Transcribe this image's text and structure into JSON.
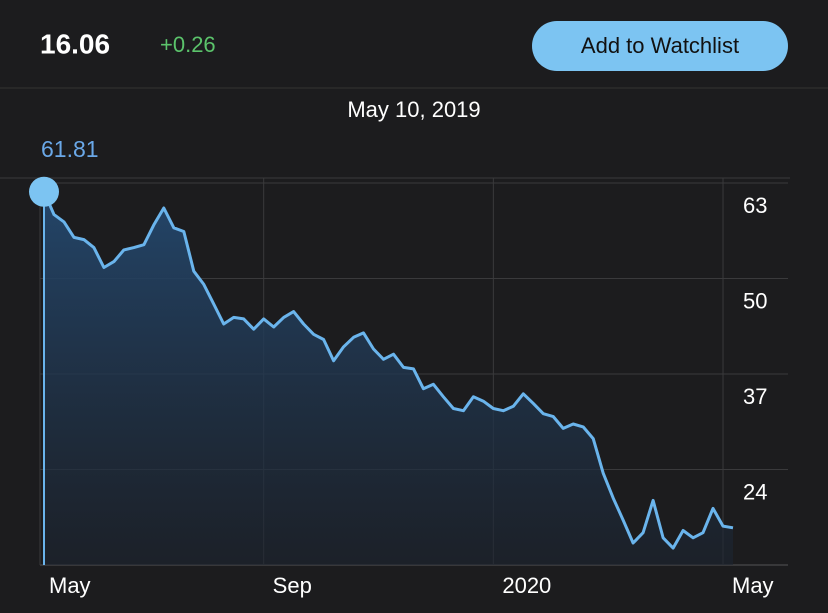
{
  "header": {
    "price": "16.06",
    "change": "+0.26",
    "button": "Add to Watchlist"
  },
  "selection": {
    "date": "May 10, 2019"
  },
  "chart_data": {
    "type": "area",
    "categories": [
      "May",
      null,
      null,
      null,
      null,
      null,
      null,
      null,
      null,
      null,
      null,
      null,
      null,
      null,
      null,
      null,
      null,
      null,
      null,
      null,
      null,
      null,
      "Sep",
      null,
      null,
      null,
      null,
      null,
      null,
      null,
      null,
      null,
      null,
      null,
      null,
      null,
      null,
      null,
      null,
      null,
      null,
      null,
      null,
      null,
      null,
      "2020",
      null,
      null,
      null,
      null,
      null,
      null,
      null,
      null,
      null,
      null,
      null,
      null,
      null,
      null,
      null,
      null,
      null,
      null,
      null,
      null,
      null,
      null,
      "May",
      null
    ],
    "series": [
      {
        "color": "#6ab4ec",
        "values": [
          61.81,
          58.7,
          57.7,
          55.6,
          55.3,
          54.2,
          51.5,
          52.3,
          53.9,
          54.2,
          54.6,
          57.3,
          59.6,
          56.9,
          56.4,
          51.0,
          49.2,
          46.5,
          43.8,
          44.7,
          44.5,
          43.1,
          44.5,
          43.4,
          44.7,
          45.5,
          43.8,
          42.4,
          41.7,
          38.8,
          40.7,
          42.0,
          42.6,
          40.4,
          39.0,
          39.7,
          37.9,
          37.7,
          35.0,
          35.6,
          33.9,
          32.3,
          32.0,
          33.9,
          33.3,
          32.3,
          32.0,
          32.6,
          34.3,
          33.0,
          31.6,
          31.2,
          29.6,
          30.2,
          29.8,
          28.2,
          23.5,
          20.1,
          17.1,
          14.0,
          15.4,
          19.8,
          14.7,
          13.3,
          15.7,
          14.7,
          15.4,
          18.7,
          16.3,
          16.06
        ]
      }
    ],
    "ylim": [
      11,
      63
    ],
    "yticks": [
      63,
      50,
      37,
      24
    ],
    "grid": true
  }
}
